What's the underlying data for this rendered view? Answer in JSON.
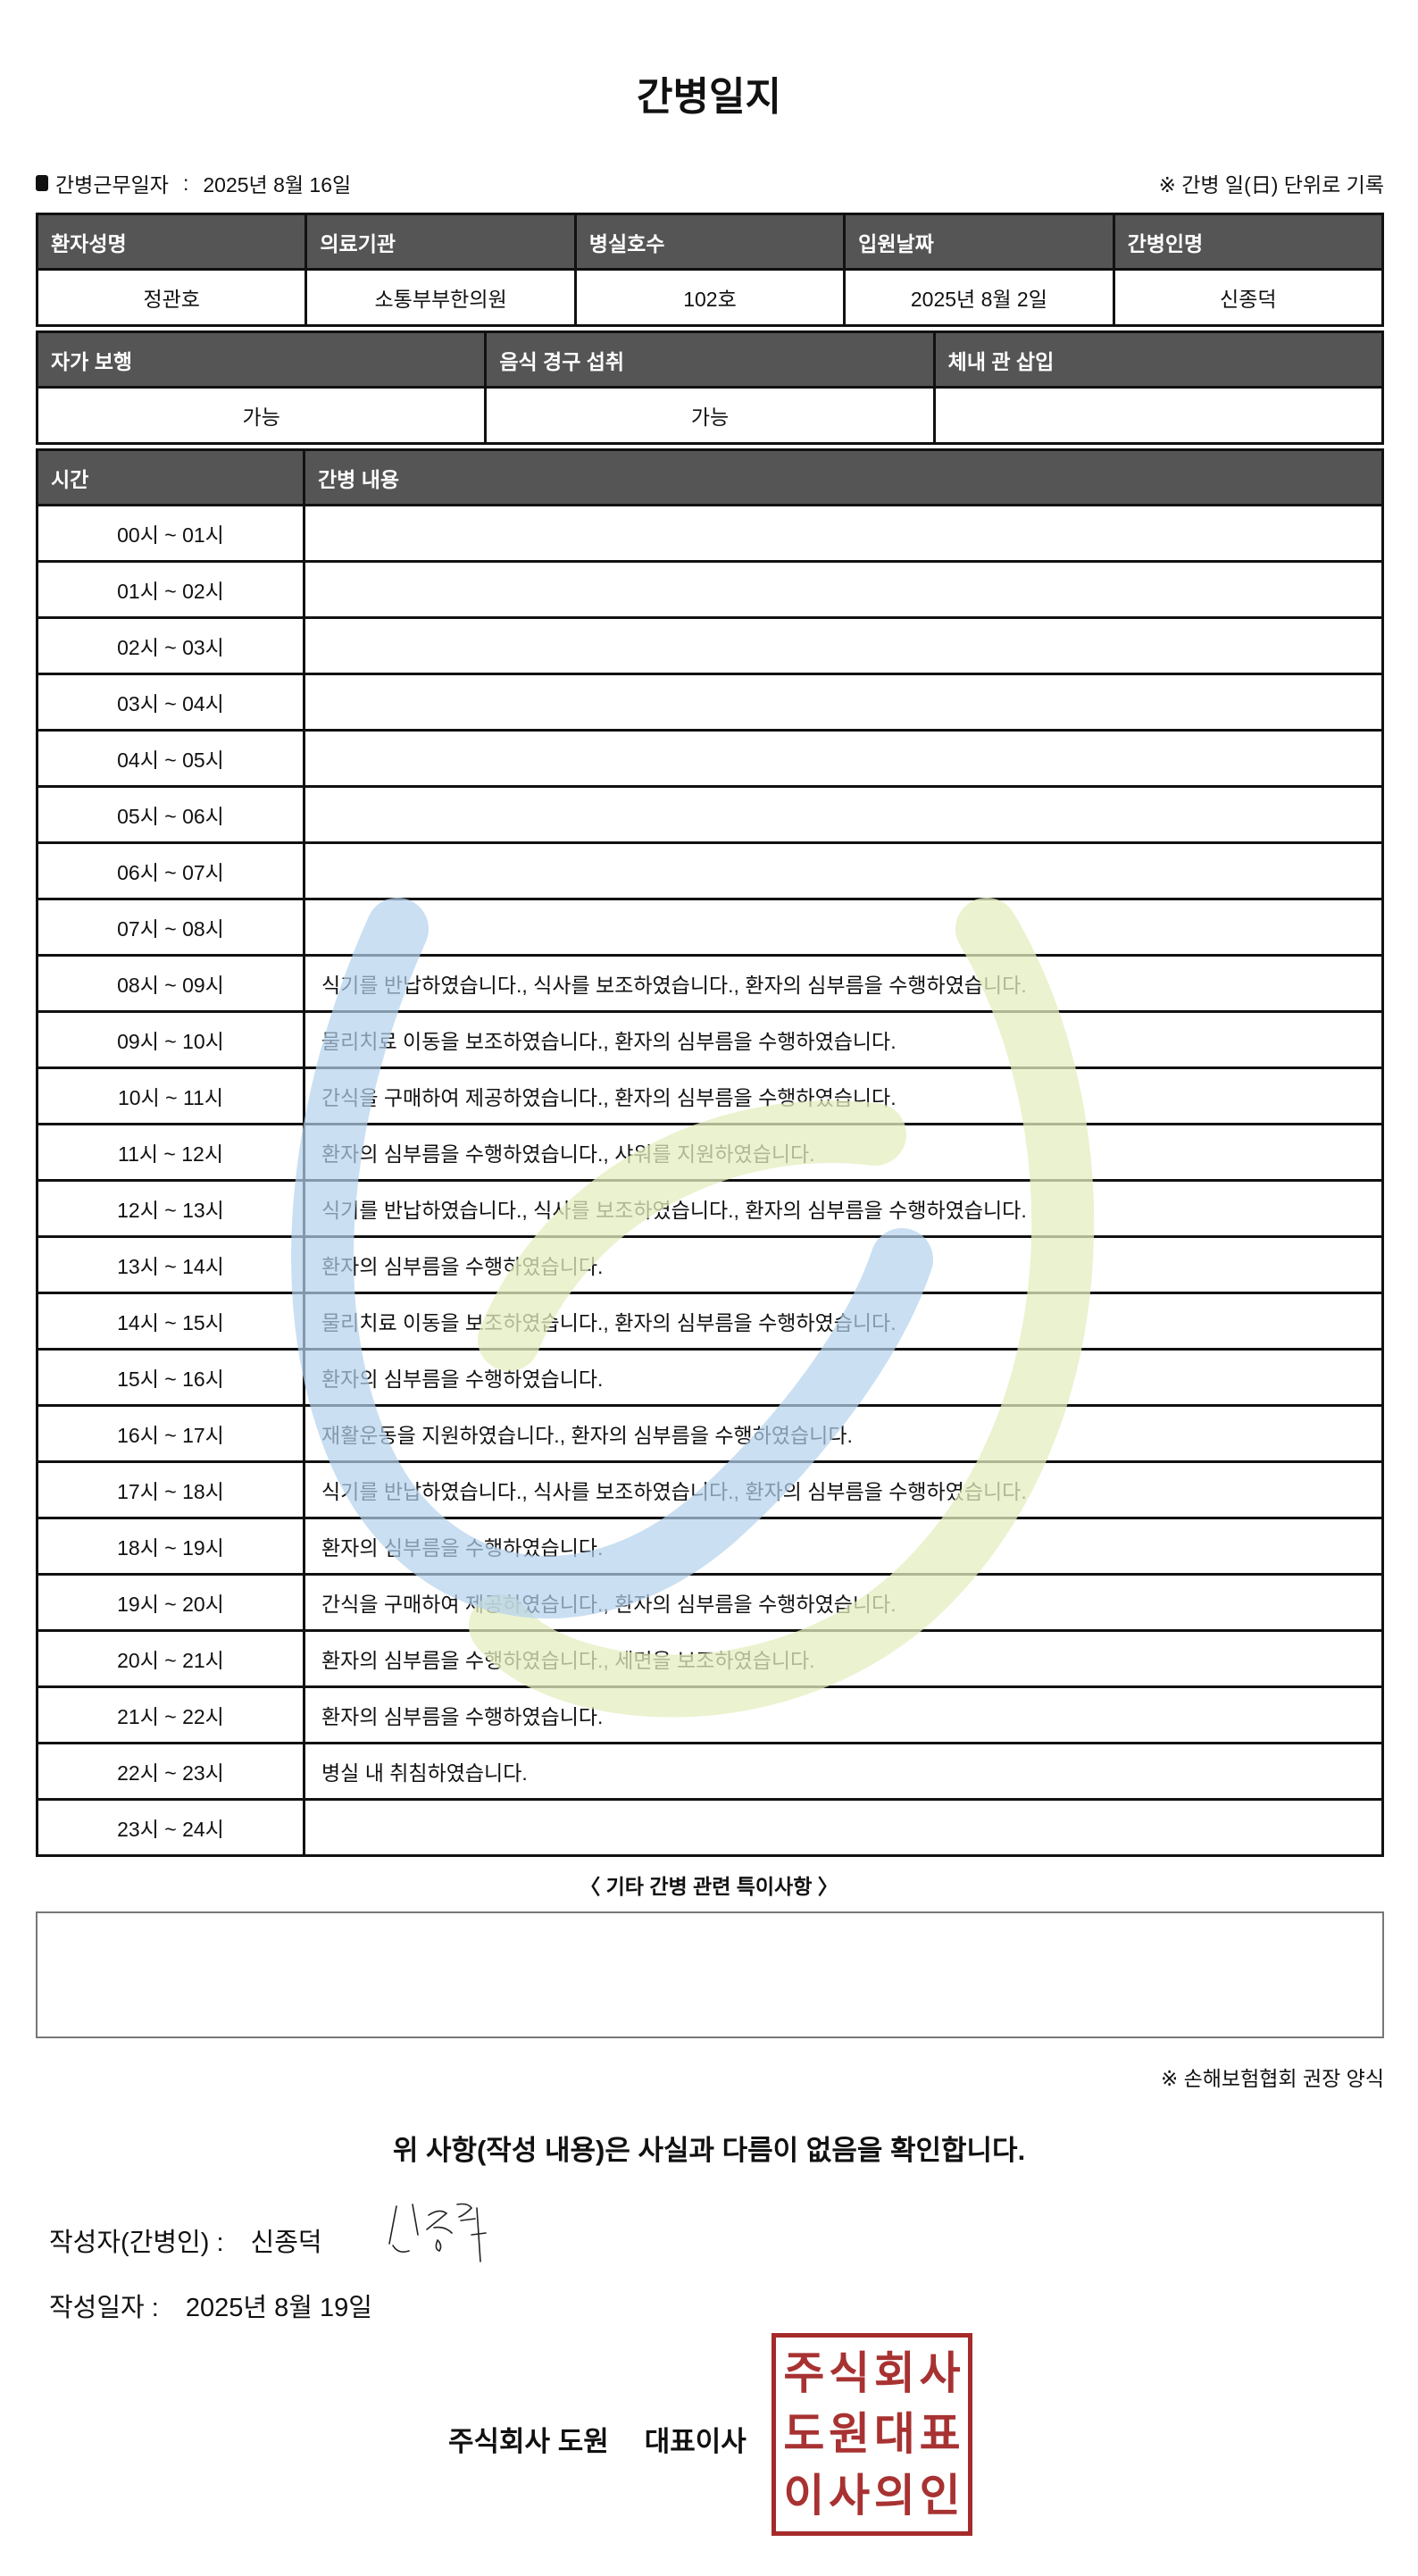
{
  "title": "간병일지",
  "work_date": {
    "label": "간병근무일자",
    "separator": ":",
    "value": "2025년 8월 16일"
  },
  "unit_note": "※ 간병 일(日) 단위로 기록",
  "info_table": {
    "headers": [
      "환자성명",
      "의료기관",
      "병실호수",
      "입원날짜",
      "간병인명"
    ],
    "values": [
      "정관호",
      "소통부부한의원",
      "102호",
      "2025년 8월 2일",
      "신종덕"
    ]
  },
  "status_table": {
    "headers": [
      "자가 보행",
      "음식 경구 섭취",
      "체내 관 삽입"
    ],
    "values": [
      "가능",
      "가능",
      ""
    ]
  },
  "log_table": {
    "headers": [
      "시간",
      "간병 내용"
    ],
    "rows": [
      {
        "time": "00시 ~ 01시",
        "content": ""
      },
      {
        "time": "01시 ~ 02시",
        "content": ""
      },
      {
        "time": "02시 ~ 03시",
        "content": ""
      },
      {
        "time": "03시 ~ 04시",
        "content": ""
      },
      {
        "time": "04시 ~ 05시",
        "content": ""
      },
      {
        "time": "05시 ~ 06시",
        "content": ""
      },
      {
        "time": "06시 ~ 07시",
        "content": ""
      },
      {
        "time": "07시 ~ 08시",
        "content": ""
      },
      {
        "time": "08시 ~ 09시",
        "content": "식기를 반납하였습니다., 식사를 보조하였습니다., 환자의 심부름을 수행하였습니다."
      },
      {
        "time": "09시 ~ 10시",
        "content": "물리치료 이동을 보조하였습니다., 환자의 심부름을 수행하였습니다."
      },
      {
        "time": "10시 ~ 11시",
        "content": "간식을 구매하여 제공하였습니다., 환자의 심부름을 수행하였습니다."
      },
      {
        "time": "11시 ~ 12시",
        "content": "환자의 심부름을 수행하였습니다., 샤워를 지원하였습니다."
      },
      {
        "time": "12시 ~ 13시",
        "content": "식기를 반납하였습니다., 식사를 보조하였습니다., 환자의 심부름을 수행하였습니다."
      },
      {
        "time": "13시 ~ 14시",
        "content": "환자의 심부름을 수행하였습니다."
      },
      {
        "time": "14시 ~ 15시",
        "content": "물리치료 이동을 보조하였습니다., 환자의 심부름을 수행하였습니다."
      },
      {
        "time": "15시 ~ 16시",
        "content": "환자의 심부름을 수행하였습니다."
      },
      {
        "time": "16시 ~ 17시",
        "content": "재활운동을 지원하였습니다., 환자의 심부름을 수행하였습니다."
      },
      {
        "time": "17시 ~ 18시",
        "content": "식기를 반납하였습니다., 식사를 보조하였습니다., 환자의 심부름을 수행하였습니다."
      },
      {
        "time": "18시 ~ 19시",
        "content": "환자의 심부름을 수행하였습니다."
      },
      {
        "time": "19시 ~ 20시",
        "content": "간식을 구매하여 제공하였습니다., 환자의 심부름을 수행하였습니다."
      },
      {
        "time": "20시 ~ 21시",
        "content": "환자의 심부름을 수행하였습니다., 세면을 보조하였습니다."
      },
      {
        "time": "21시 ~ 22시",
        "content": "환자의 심부름을 수행하였습니다."
      },
      {
        "time": "22시 ~ 23시",
        "content": "병실 내 취침하였습니다."
      },
      {
        "time": "23시 ~ 24시",
        "content": ""
      }
    ]
  },
  "special_notes": {
    "label": "〈 기타 간병 관련 특이사항 〉",
    "value": ""
  },
  "form_note": "※ 손해보험협회 권장 양식",
  "confirmation": "위 사항(작성 내용)은 사실과 다름이 없음을 확인합니다.",
  "writer": {
    "label": "작성자(간병인) :",
    "value": "신종덕"
  },
  "written_date": {
    "label": "작성일자 :",
    "value": "2025년 8월 19일"
  },
  "company": {
    "name": "주식회사 도원",
    "title": "대표이사"
  },
  "stamp_text": [
    "주",
    "식",
    "회",
    "사",
    "도",
    "원",
    "대",
    "표",
    "이",
    "사",
    "의",
    "인"
  ],
  "colors": {
    "header_bg": "#555555",
    "stamp": "#a83232",
    "watermark_blue": "#b9d6ee",
    "watermark_yellow": "#eaf2c6"
  },
  "icons": {
    "bullet": "black-square-icon",
    "watermark": "smile-logo-icon"
  }
}
